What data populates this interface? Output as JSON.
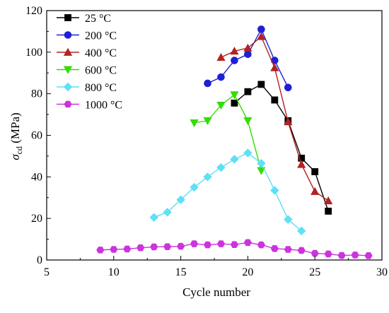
{
  "chart_data": {
    "type": "line",
    "title": "",
    "xlabel": "Cycle number",
    "ylabel": {
      "symbol": "σ",
      "subscript": "cd",
      "unit": " (MPa)"
    },
    "xlim": [
      5,
      30
    ],
    "ylim": [
      0,
      120
    ],
    "xticks": [
      5,
      10,
      15,
      20,
      25,
      30
    ],
    "yticks": [
      0,
      20,
      40,
      60,
      80,
      100,
      120
    ],
    "grid": false,
    "legend_position": "top-left",
    "series": [
      {
        "name": "25 °C",
        "color": "#000000",
        "marker": "square",
        "x": [
          19,
          20,
          21,
          22,
          23,
          24,
          25,
          26
        ],
        "y": [
          75.5,
          81,
          84.5,
          77,
          67,
          49,
          42.5,
          23.5
        ]
      },
      {
        "name": "200 °C",
        "color": "#1f1fd6",
        "marker": "circle",
        "x": [
          17,
          18,
          19,
          20,
          21,
          22,
          23
        ],
        "y": [
          85,
          88,
          96,
          99,
          111,
          96,
          83
        ]
      },
      {
        "name": "400 °C",
        "color": "#b22222",
        "marker": "triangle-up",
        "x": [
          18,
          19,
          20,
          21,
          22,
          23,
          24,
          25,
          26
        ],
        "y": [
          97.5,
          100.5,
          102,
          107.5,
          92.5,
          66.5,
          46,
          33,
          28.5
        ]
      },
      {
        "name": "600 °C",
        "color": "#33dd00",
        "marker": "triangle-down",
        "x": [
          16,
          17,
          18,
          19,
          20,
          21
        ],
        "y": [
          66,
          67,
          74.5,
          79.5,
          67,
          43
        ]
      },
      {
        "name": "800 °C",
        "color": "#5ee0f5",
        "marker": "diamond",
        "x": [
          13,
          14,
          15,
          16,
          17,
          18,
          19,
          20,
          21,
          22,
          23,
          24
        ],
        "y": [
          20.5,
          23,
          29,
          35,
          40,
          44.5,
          48.5,
          51.5,
          46.5,
          33.5,
          19.5,
          14
        ]
      },
      {
        "name": "1000 °C",
        "color": "#cc33dd",
        "marker": "hexagon",
        "x": [
          9,
          10,
          11,
          12,
          13,
          14,
          15,
          16,
          17,
          18,
          19,
          20,
          21,
          22,
          23,
          24,
          25,
          26,
          27,
          28,
          29
        ],
        "y": [
          4.8,
          5.1,
          5.3,
          5.9,
          6.3,
          6.4,
          6.6,
          7.8,
          7.3,
          7.8,
          7.4,
          8.4,
          7.3,
          5.5,
          5.1,
          4.6,
          3.2,
          2.9,
          2.2,
          2.4,
          2.1
        ]
      }
    ]
  }
}
